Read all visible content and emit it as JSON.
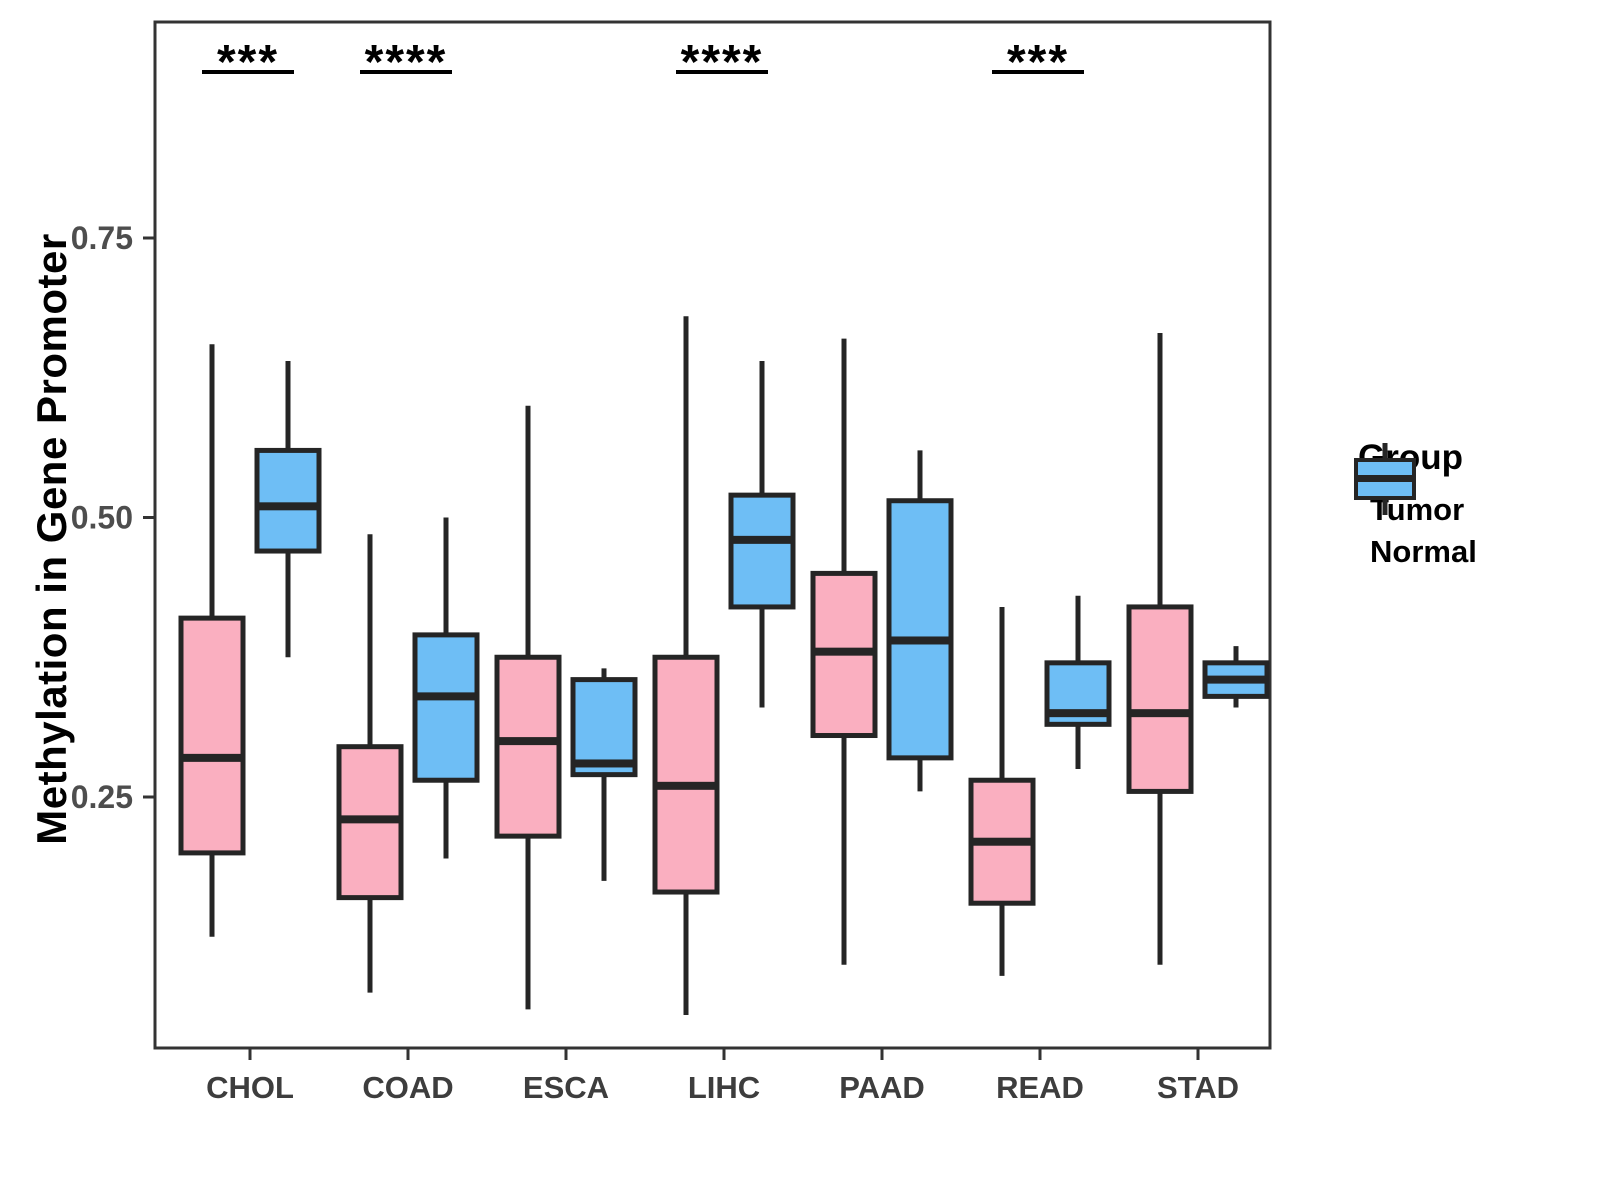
{
  "chart_data": {
    "type": "boxplot",
    "title": "",
    "xlabel": "",
    "ylabel": "Methylation in Gene Promoter",
    "ylim": [
      0.025,
      0.945
    ],
    "yticks": [
      0.25,
      0.5,
      0.75
    ],
    "ytick_labels": [
      "0.25",
      "0.50",
      "0.75"
    ],
    "grid": false,
    "categories": [
      "CHOL",
      "COAD",
      "ESCA",
      "LIHC",
      "PAAD",
      "READ",
      "STAD"
    ],
    "stats_order": [
      "whisker_low",
      "q1",
      "median",
      "q3",
      "whisker_high"
    ],
    "series": [
      {
        "name": "Tumor",
        "color": "#FAAFC0",
        "values": [
          [
            0.125,
            0.2,
            0.285,
            0.41,
            0.655
          ],
          [
            0.075,
            0.16,
            0.23,
            0.295,
            0.485
          ],
          [
            0.06,
            0.215,
            0.3,
            0.375,
            0.6
          ],
          [
            0.055,
            0.165,
            0.26,
            0.375,
            0.68
          ],
          [
            0.1,
            0.305,
            0.38,
            0.45,
            0.66
          ],
          [
            0.09,
            0.155,
            0.21,
            0.265,
            0.42
          ],
          [
            0.1,
            0.255,
            0.325,
            0.42,
            0.665
          ]
        ]
      },
      {
        "name": "Normal",
        "color": "#6EBEF5",
        "values": [
          [
            0.375,
            0.47,
            0.51,
            0.56,
            0.64
          ],
          [
            0.195,
            0.265,
            0.34,
            0.395,
            0.5
          ],
          [
            0.175,
            0.27,
            0.28,
            0.355,
            0.365
          ],
          [
            0.33,
            0.42,
            0.48,
            0.52,
            0.64
          ],
          [
            0.255,
            0.285,
            0.39,
            0.515,
            0.56
          ],
          [
            0.275,
            0.315,
            0.325,
            0.37,
            0.43
          ],
          [
            0.33,
            0.34,
            0.355,
            0.37,
            0.385
          ]
        ]
      }
    ],
    "significance": [
      {
        "category": "CHOL",
        "label": "***"
      },
      {
        "category": "COAD",
        "label": "****"
      },
      {
        "category": "LIHC",
        "label": "****"
      },
      {
        "category": "READ",
        "label": "***"
      }
    ],
    "legend": {
      "title": "Group",
      "position": "right",
      "entries": [
        {
          "label": "Tumor",
          "color": "#FAAFC0"
        },
        {
          "label": "Normal",
          "color": "#6EBEF5"
        }
      ]
    },
    "style": {
      "box_border_color": "#252525",
      "panel_border_color": "#333333",
      "background": "#ffffff"
    }
  }
}
